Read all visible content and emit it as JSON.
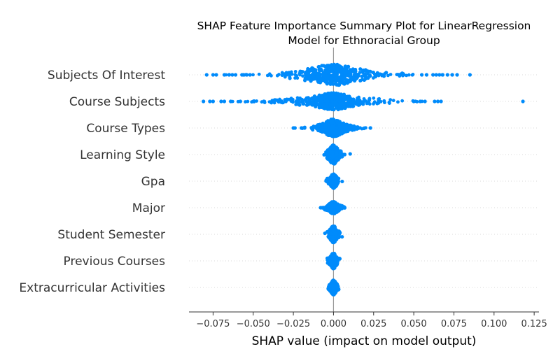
{
  "chart_data": {
    "type": "scatter",
    "subtype": "shap-beeswarm",
    "title_lines": [
      "SHAP Feature Importance Summary Plot for LinearRegression",
      "Model for Ethnoracial Group"
    ],
    "xlabel": "SHAP value (impact on model output)",
    "ylabel": "",
    "xlim": [
      -0.09,
      0.128
    ],
    "xticks": [
      -0.075,
      -0.05,
      -0.025,
      0.0,
      0.025,
      0.05,
      0.075,
      0.1,
      0.125
    ],
    "xtick_labels": [
      "−0.075",
      "−0.050",
      "−0.025",
      "0.000",
      "0.025",
      "0.050",
      "0.075",
      "0.100",
      "0.125"
    ],
    "point_color": "#008bfb",
    "zero_line_color": "#999999",
    "grid": "dotted horizontal row guides",
    "features": [
      {
        "name": "Subjects Of Interest",
        "min": -0.079,
        "max": 0.085,
        "core_width": 0.011,
        "core_height": 0.95,
        "spread": 0.024,
        "outliers": [
          -0.079,
          -0.075,
          -0.073,
          -0.068,
          -0.065,
          -0.063,
          -0.061,
          -0.057,
          -0.056,
          -0.054,
          -0.052,
          0.055,
          0.058,
          0.062,
          0.064,
          0.066,
          0.068,
          0.071,
          0.074,
          0.077,
          0.085
        ]
      },
      {
        "name": "Course Subjects",
        "min": -0.081,
        "max": 0.118,
        "core_width": 0.009,
        "core_height": 0.75,
        "spread": 0.024,
        "outliers": [
          -0.081,
          -0.077,
          -0.075,
          -0.07,
          -0.068,
          -0.064,
          -0.058,
          -0.05,
          0.05,
          0.054,
          0.057,
          0.063,
          0.065,
          0.067,
          0.118
        ]
      },
      {
        "name": "Course Types",
        "min": -0.025,
        "max": 0.023,
        "core_width": 0.004,
        "core_height": 0.8,
        "spread": 0.009,
        "outliers": [
          -0.025,
          -0.024,
          -0.02,
          -0.018,
          0.023
        ]
      },
      {
        "name": "Learning Style",
        "min": -0.003,
        "max": 0.007,
        "core_width": 0.002,
        "core_height": 0.85,
        "spread": 0.002,
        "outliers": [
          0.006,
          0.007
        ]
      },
      {
        "name": "Gpa",
        "min": -0.003,
        "max": 0.003,
        "core_width": 0.0015,
        "core_height": 0.65,
        "spread": 0.001,
        "outliers": []
      },
      {
        "name": "Major",
        "min": -0.008,
        "max": 0.007,
        "core_width": 0.002,
        "core_height": 0.55,
        "spread": 0.003,
        "outliers": [
          -0.008,
          -0.007,
          0.006,
          0.007
        ]
      },
      {
        "name": "Student Semester",
        "min": -0.002,
        "max": 0.002,
        "core_width": 0.0015,
        "core_height": 0.75,
        "spread": 0.0008,
        "outliers": []
      },
      {
        "name": "Previous Courses",
        "min": -0.003,
        "max": 0.003,
        "core_width": 0.0013,
        "core_height": 0.7,
        "spread": 0.0012,
        "outliers": []
      },
      {
        "name": "Extracurricular Activities",
        "min": -0.002,
        "max": 0.002,
        "core_width": 0.0012,
        "core_height": 0.65,
        "spread": 0.0008,
        "outliers": []
      }
    ]
  }
}
